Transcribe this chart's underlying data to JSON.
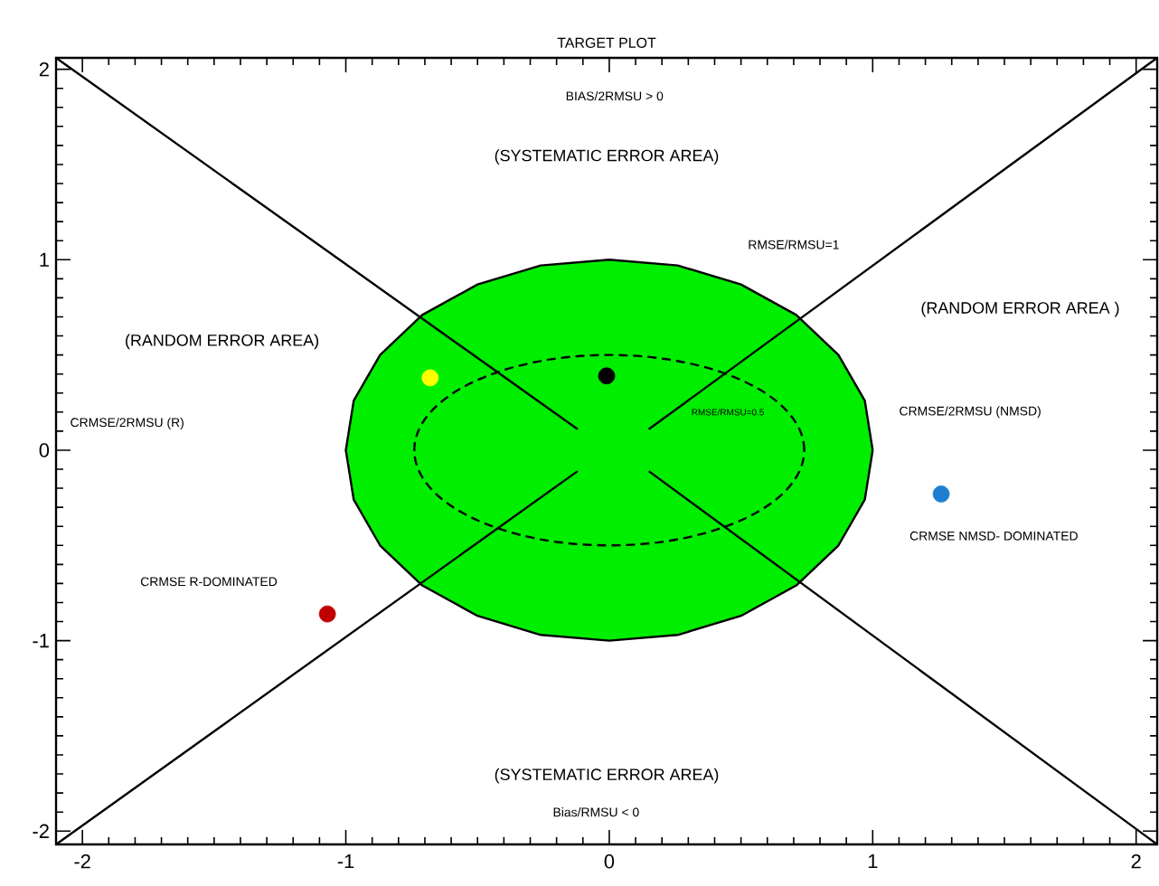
{
  "chart_data": {
    "type": "scatter",
    "title": "TARGET PLOT",
    "xlim": [
      -2.1,
      2.08
    ],
    "ylim": [
      -2.07,
      2.06
    ],
    "xticks": [
      -2,
      -1,
      0,
      1,
      2
    ],
    "yticks": [
      -2,
      -1,
      0,
      1,
      2
    ],
    "series": [
      {
        "type": "area",
        "color": "#00ee00",
        "x": [
          1,
          0.97,
          0.87,
          0.71,
          0.5,
          0.26,
          0,
          -0.26,
          -0.5,
          -0.71,
          -0.87,
          -0.97,
          -1,
          -0.97,
          -0.87,
          -0.71,
          -0.5,
          -0.26,
          0,
          0.26,
          0.5,
          0.71,
          0.87,
          0.97,
          1
        ],
        "values": [
          0,
          0.26,
          0.5,
          0.71,
          0.87,
          0.97,
          1,
          0.97,
          0.87,
          0.71,
          0.5,
          0.26,
          0,
          -0.26,
          -0.5,
          -0.71,
          -0.87,
          -0.97,
          -1,
          -0.97,
          -0.87,
          -0.71,
          -0.5,
          -0.26,
          0
        ]
      },
      {
        "type": "line",
        "line_style": "solid",
        "color": "#000000",
        "x": [
          -2.1,
          -0.12
        ],
        "values": [
          2.06,
          0.11
        ]
      },
      {
        "type": "line",
        "line_style": "solid",
        "color": "#000000",
        "x": [
          0.15,
          2.08
        ],
        "values": [
          -0.11,
          -2.07
        ]
      },
      {
        "type": "line",
        "line_style": "solid",
        "color": "#000000",
        "x": [
          -2.1,
          -0.12
        ],
        "values": [
          -2.07,
          -0.11
        ]
      },
      {
        "type": "line",
        "line_style": "solid",
        "color": "#000000",
        "x": [
          0.15,
          2.08
        ],
        "values": [
          0.11,
          2.06
        ]
      },
      {
        "marker": "circle",
        "x": [
          -0.68,
          -0.01,
          1.26,
          -1.07
        ],
        "values": [
          0.38,
          0.39,
          -0.23,
          -0.86
        ],
        "colors": [
          "#ffff00",
          "#000000",
          "#1e7fd0",
          "#c00000"
        ]
      }
    ],
    "annotations": [
      "BIAS/2RMSU > 0",
      "(SYSTEMATIC ERROR AREA)",
      "RMSE/RMSU=1",
      "(RANDOM ERROR AREA)",
      "(RANDOM ERROR AREA )",
      "CRMSE/2RMSU  (R)",
      "RMSE/RMSU=0.5",
      "CRMSE/2RMSU  (NMSD)",
      "CRMSE NMSD- DOMINATED",
      "CRMSE  R-DOMINATED",
      "(SYSTEMATIC ERROR AREA)",
      "Bias/RMSU < 0"
    ]
  }
}
